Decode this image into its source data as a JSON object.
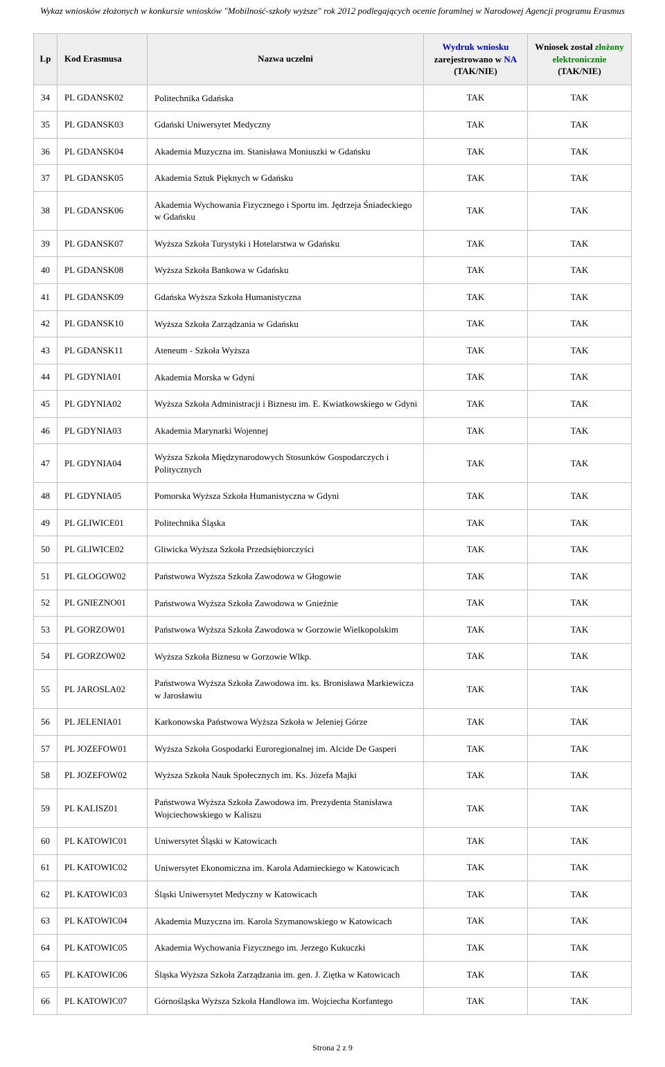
{
  "document": {
    "title": "Wykaz wniosków złożonych w konkursie wniosków \"Mobilność-szkoły wyższe\" rok 2012 podlegających ocenie foramlnej w Narodowej Agencji programu Erasmus",
    "footer": "Strona 2 z 9"
  },
  "columns": {
    "lp": "Lp",
    "code": "Kod Erasmusa",
    "name": "Nazwa uczelni",
    "c1_line1": "Wydruk wniosku",
    "c1_line2a": "zarejestrowano w ",
    "c1_line2b": "NA",
    "c1_line3": "(TAK/NIE)",
    "c2_line1a": "Wniosek został ",
    "c2_line1b": "złożony",
    "c2_line2": "elektronicznie",
    "c2_line3": "(TAK/NIE)"
  },
  "colors": {
    "header_bg": "#eeeeee",
    "border": "#bfbfbf",
    "text": "#000000",
    "blue": "#0000cc",
    "green": "#008000"
  },
  "rows": [
    {
      "lp": "34",
      "code": "PL GDANSK02",
      "name": "Politechnika Gdańska",
      "c1": "TAK",
      "c2": "TAK"
    },
    {
      "lp": "35",
      "code": "PL GDANSK03",
      "name": "Gdański Uniwersytet Medyczny",
      "c1": "TAK",
      "c2": "TAK"
    },
    {
      "lp": "36",
      "code": "PL GDANSK04",
      "name": "Akademia Muzyczna im. Stanisława Moniuszki w Gdańsku",
      "c1": "TAK",
      "c2": "TAK"
    },
    {
      "lp": "37",
      "code": "PL GDANSK05",
      "name": "Akademia Sztuk Pięknych w Gdańsku",
      "c1": "TAK",
      "c2": "TAK"
    },
    {
      "lp": "38",
      "code": "PL GDANSK06",
      "name": "Akademia Wychowania Fizycznego i Sportu im. Jędrzeja Śniadeckiego w Gdańsku",
      "c1": "TAK",
      "c2": "TAK"
    },
    {
      "lp": "39",
      "code": "PL GDANSK07",
      "name": "Wyższa Szkoła Turystyki i Hotelarstwa w Gdańsku",
      "c1": "TAK",
      "c2": "TAK"
    },
    {
      "lp": "40",
      "code": "PL GDANSK08",
      "name": "Wyższa Szkoła Bankowa w Gdańsku",
      "c1": "TAK",
      "c2": "TAK"
    },
    {
      "lp": "41",
      "code": "PL GDANSK09",
      "name": "Gdańska Wyższa Szkoła Humanistyczna",
      "c1": "TAK",
      "c2": "TAK"
    },
    {
      "lp": "42",
      "code": "PL GDANSK10",
      "name": "Wyższa Szkoła Zarządzania w Gdańsku",
      "c1": "TAK",
      "c2": "TAK"
    },
    {
      "lp": "43",
      "code": "PL GDANSK11",
      "name": "Ateneum - Szkoła Wyższa",
      "c1": "TAK",
      "c2": "TAK"
    },
    {
      "lp": "44",
      "code": "PL GDYNIA01",
      "name": "Akademia Morska w Gdyni",
      "c1": "TAK",
      "c2": "TAK"
    },
    {
      "lp": "45",
      "code": "PL GDYNIA02",
      "name": "Wyższa Szkoła Administracji i Biznesu im. E. Kwiatkowskiego w Gdyni",
      "c1": "TAK",
      "c2": "TAK"
    },
    {
      "lp": "46",
      "code": "PL GDYNIA03",
      "name": "Akademia Marynarki Wojennej",
      "c1": "TAK",
      "c2": "TAK"
    },
    {
      "lp": "47",
      "code": "PL GDYNIA04",
      "name": "Wyższa Szkoła Międzynarodowych Stosunków Gospodarczych i Politycznych",
      "c1": "TAK",
      "c2": "TAK"
    },
    {
      "lp": "48",
      "code": "PL GDYNIA05",
      "name": "Pomorska Wyższa Szkoła Humanistyczna w Gdyni",
      "c1": "TAK",
      "c2": "TAK"
    },
    {
      "lp": "49",
      "code": "PL GLIWICE01",
      "name": "Politechnika Śląska",
      "c1": "TAK",
      "c2": "TAK"
    },
    {
      "lp": "50",
      "code": "PL GLIWICE02",
      "name": "Gliwicka Wyższa Szkoła Przedsiębiorczyści",
      "c1": "TAK",
      "c2": "TAK"
    },
    {
      "lp": "51",
      "code": "PL GLOGOW02",
      "name": "Państwowa Wyższa Szkoła Zawodowa w Głogowie",
      "c1": "TAK",
      "c2": "TAK"
    },
    {
      "lp": "52",
      "code": "PL GNIEZNO01",
      "name": "Państwowa Wyższa Szkoła Zawodowa w Gnieźnie",
      "c1": "TAK",
      "c2": "TAK"
    },
    {
      "lp": "53",
      "code": "PL GORZOW01",
      "name": "Państwowa Wyższa Szkoła Zawodowa w Gorzowie Wielkopolskim",
      "c1": "TAK",
      "c2": "TAK"
    },
    {
      "lp": "54",
      "code": "PL GORZOW02",
      "name": "Wyższa Szkoła Biznesu w Gorzowie Wlkp.",
      "c1": "TAK",
      "c2": "TAK"
    },
    {
      "lp": "55",
      "code": "PL JAROSLA02",
      "name": "Państwowa Wyższa Szkoła Zawodowa im. ks. Bronisława Markiewicza w Jarosławiu",
      "c1": "TAK",
      "c2": "TAK"
    },
    {
      "lp": "56",
      "code": "PL JELENIA01",
      "name": "Karkonowska Państwowa Wyższa Szkoła w Jeleniej Górze",
      "c1": "TAK",
      "c2": "TAK"
    },
    {
      "lp": "57",
      "code": "PL JOZEFOW01",
      "name": "Wyższa Szkoła Gospodarki Euroregionalnej im. Alcide De Gasperi",
      "c1": "TAK",
      "c2": "TAK"
    },
    {
      "lp": "58",
      "code": "PL JOZEFOW02",
      "name": "Wyższa Szkoła Nauk Społecznych im. Ks. Józefa Majki",
      "c1": "TAK",
      "c2": "TAK"
    },
    {
      "lp": "59",
      "code": "PL KALISZ01",
      "name": "Państwowa Wyższa Szkoła Zawodowa im. Prezydenta Stanisława Wojciechowskiego w Kaliszu",
      "c1": "TAK",
      "c2": "TAK"
    },
    {
      "lp": "60",
      "code": "PL KATOWIC01",
      "name": "Uniwersytet Śląski w Katowicach",
      "c1": "TAK",
      "c2": "TAK"
    },
    {
      "lp": "61",
      "code": "PL KATOWIC02",
      "name": "Uniwersytet Ekonomiczna im. Karola Adamieckiego w Katowicach",
      "c1": "TAK",
      "c2": "TAK"
    },
    {
      "lp": "62",
      "code": "PL KATOWIC03",
      "name": "Śląski Uniwersytet Medyczny w Katowicach",
      "c1": "TAK",
      "c2": "TAK"
    },
    {
      "lp": "63",
      "code": "PL KATOWIC04",
      "name": "Akademia Muzyczna im. Karola Szymanowskiego w Katowicach",
      "c1": "TAK",
      "c2": "TAK"
    },
    {
      "lp": "64",
      "code": "PL KATOWIC05",
      "name": "Akademia Wychowania Fizycznego im. Jerzego Kukuczki",
      "c1": "TAK",
      "c2": "TAK"
    },
    {
      "lp": "65",
      "code": "PL KATOWIC06",
      "name": "Śląska Wyższa Szkoła Zarządzania im. gen. J. Ziętka w Katowicach",
      "c1": "TAK",
      "c2": "TAK"
    },
    {
      "lp": "66",
      "code": "PL KATOWIC07",
      "name": "Górnośląska Wyższa Szkoła Handlowa im. Wojciecha Korfantego",
      "c1": "TAK",
      "c2": "TAK"
    }
  ]
}
